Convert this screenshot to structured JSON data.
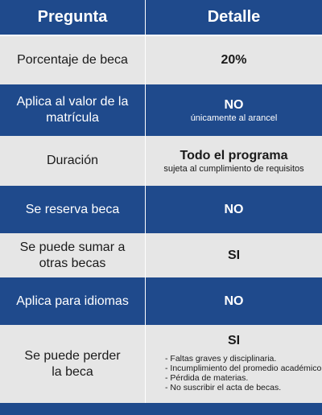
{
  "header": {
    "col1": "Pregunta",
    "col2": "Detalle"
  },
  "rows": [
    {
      "question": "Porcentaje de beca",
      "answer": "20%",
      "note": ""
    },
    {
      "question": "Aplica al valor de la matrícula",
      "answer": "NO",
      "note": "únicamente al arancel"
    },
    {
      "question": "Duración",
      "answer": "Todo el programa",
      "note": "sujeta al cumplimiento de requisitos"
    },
    {
      "question": "Se reserva beca",
      "answer": "NO",
      "note": ""
    },
    {
      "question": "Se puede sumar a otras becas",
      "answer": "SI",
      "note": ""
    },
    {
      "question": "Aplica para idiomas",
      "answer": "NO",
      "note": ""
    },
    {
      "question": "Se puede perder la beca",
      "answer": "SI",
      "note": "",
      "list": [
        "- Faltas graves y disciplinaria.",
        "- Incumplimiento del promedio académico.",
        "- Pérdida de materias.",
        "- No suscribir el acta de becas."
      ]
    }
  ]
}
